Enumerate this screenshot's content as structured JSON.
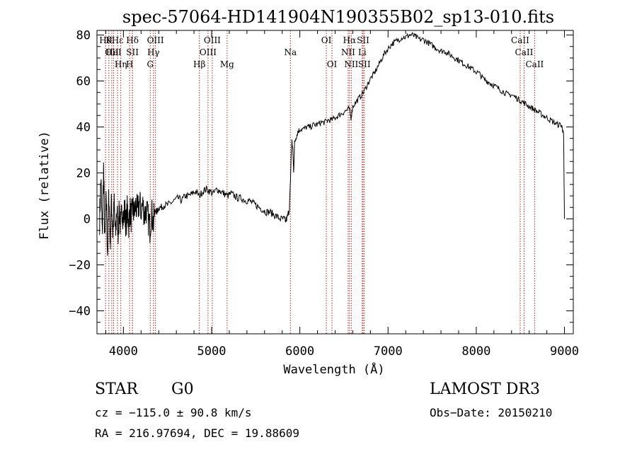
{
  "chart_data": {
    "type": "line",
    "title": "spec-57064-HD141904N190355B02_sp13-010.fits",
    "xlabel": "Wavelength (Å)",
    "ylabel": "Flux (relative)",
    "xlim": [
      3700,
      9100
    ],
    "ylim": [
      -50,
      82
    ],
    "xticks": [
      {
        "v": 4000,
        "label": "4000"
      },
      {
        "v": 5000,
        "label": "5000"
      },
      {
        "v": 6000,
        "label": "6000"
      },
      {
        "v": 7000,
        "label": "7000"
      },
      {
        "v": 8000,
        "label": "8000"
      },
      {
        "v": 9000,
        "label": "9000"
      }
    ],
    "yticks": [
      {
        "v": -40,
        "label": "−40"
      },
      {
        "v": -20,
        "label": "−20"
      },
      {
        "v": 0,
        "label": "0"
      },
      {
        "v": 20,
        "label": "20"
      },
      {
        "v": 40,
        "label": "40"
      },
      {
        "v": 60,
        "label": "60"
      },
      {
        "v": 80,
        "label": "80"
      }
    ],
    "series": [
      {
        "name": "flux",
        "color": "#000000",
        "points": [
          [
            3730,
            0
          ],
          [
            3745,
            18
          ],
          [
            3760,
            -8
          ],
          [
            3775,
            22
          ],
          [
            3790,
            -12
          ],
          [
            3805,
            10
          ],
          [
            3820,
            -15
          ],
          [
            3835,
            12
          ],
          [
            3850,
            -10
          ],
          [
            3865,
            8
          ],
          [
            3880,
            -6
          ],
          [
            3895,
            6
          ],
          [
            3910,
            -8
          ],
          [
            3925,
            5
          ],
          [
            3940,
            -5
          ],
          [
            3955,
            4
          ],
          [
            3970,
            -4
          ],
          [
            3985,
            5
          ],
          [
            4000,
            0
          ],
          [
            4015,
            4
          ],
          [
            4030,
            -3
          ],
          [
            4045,
            5
          ],
          [
            4060,
            -2
          ],
          [
            4075,
            4
          ],
          [
            4090,
            0
          ],
          [
            4105,
            5
          ],
          [
            4120,
            2
          ],
          [
            4140,
            6
          ],
          [
            4160,
            3
          ],
          [
            4180,
            7
          ],
          [
            4200,
            4
          ],
          [
            4220,
            6
          ],
          [
            4240,
            2
          ],
          [
            4260,
            4
          ],
          [
            4280,
            0
          ],
          [
            4300,
            -4
          ],
          [
            4320,
            3
          ],
          [
            4340,
            -2
          ],
          [
            4360,
            4
          ],
          [
            4380,
            3
          ],
          [
            4400,
            5
          ],
          [
            4430,
            5
          ],
          [
            4460,
            6
          ],
          [
            4500,
            6
          ],
          [
            4540,
            7
          ],
          [
            4580,
            8
          ],
          [
            4620,
            9
          ],
          [
            4660,
            8
          ],
          [
            4700,
            10
          ],
          [
            4740,
            10
          ],
          [
            4780,
            11
          ],
          [
            4820,
            12
          ],
          [
            4860,
            10
          ],
          [
            4900,
            12
          ],
          [
            4940,
            13
          ],
          [
            4980,
            12
          ],
          [
            5020,
            11
          ],
          [
            5060,
            13
          ],
          [
            5100,
            12
          ],
          [
            5140,
            11
          ],
          [
            5180,
            10
          ],
          [
            5220,
            11
          ],
          [
            5260,
            10
          ],
          [
            5300,
            9
          ],
          [
            5340,
            9
          ],
          [
            5380,
            8
          ],
          [
            5420,
            8
          ],
          [
            5460,
            7
          ],
          [
            5500,
            6
          ],
          [
            5540,
            5
          ],
          [
            5580,
            4
          ],
          [
            5620,
            3
          ],
          [
            5660,
            3
          ],
          [
            5700,
            2
          ],
          [
            5740,
            1
          ],
          [
            5780,
            0
          ],
          [
            5820,
            0
          ],
          [
            5840,
            -1
          ],
          [
            5860,
            1
          ],
          [
            5880,
            4
          ],
          [
            5890,
            12
          ],
          [
            5900,
            26
          ],
          [
            5910,
            34
          ],
          [
            5920,
            30
          ],
          [
            5930,
            20
          ],
          [
            5940,
            33
          ],
          [
            5960,
            36
          ],
          [
            5980,
            38
          ],
          [
            6000,
            39
          ],
          [
            6040,
            39
          ],
          [
            6080,
            40
          ],
          [
            6120,
            40
          ],
          [
            6160,
            41
          ],
          [
            6200,
            41
          ],
          [
            6240,
            42
          ],
          [
            6280,
            42
          ],
          [
            6320,
            43
          ],
          [
            6360,
            43
          ],
          [
            6400,
            44
          ],
          [
            6440,
            45
          ],
          [
            6480,
            46
          ],
          [
            6520,
            47
          ],
          [
            6560,
            48
          ],
          [
            6580,
            44
          ],
          [
            6600,
            49
          ],
          [
            6640,
            51
          ],
          [
            6680,
            53
          ],
          [
            6720,
            55
          ],
          [
            6760,
            58
          ],
          [
            6800,
            61
          ],
          [
            6840,
            63
          ],
          [
            6880,
            66
          ],
          [
            6920,
            69
          ],
          [
            6960,
            72
          ],
          [
            7000,
            74
          ],
          [
            7040,
            76
          ],
          [
            7080,
            77
          ],
          [
            7120,
            78
          ],
          [
            7160,
            79
          ],
          [
            7200,
            79
          ],
          [
            7240,
            80
          ],
          [
            7280,
            80
          ],
          [
            7320,
            79
          ],
          [
            7360,
            78
          ],
          [
            7400,
            78
          ],
          [
            7440,
            77
          ],
          [
            7480,
            76
          ],
          [
            7520,
            75
          ],
          [
            7560,
            74
          ],
          [
            7600,
            73
          ],
          [
            7640,
            73
          ],
          [
            7680,
            72
          ],
          [
            7720,
            71
          ],
          [
            7760,
            70
          ],
          [
            7800,
            69
          ],
          [
            7840,
            68
          ],
          [
            7880,
            67
          ],
          [
            7920,
            66
          ],
          [
            7960,
            65
          ],
          [
            8000,
            64
          ],
          [
            8040,
            63
          ],
          [
            8080,
            61
          ],
          [
            8120,
            60
          ],
          [
            8160,
            59
          ],
          [
            8200,
            58
          ],
          [
            8240,
            57
          ],
          [
            8280,
            56
          ],
          [
            8320,
            55
          ],
          [
            8360,
            54
          ],
          [
            8400,
            54
          ],
          [
            8440,
            53
          ],
          [
            8480,
            52
          ],
          [
            8520,
            51
          ],
          [
            8560,
            50
          ],
          [
            8600,
            49
          ],
          [
            8640,
            48
          ],
          [
            8680,
            47
          ],
          [
            8720,
            46
          ],
          [
            8760,
            45
          ],
          [
            8800,
            44
          ],
          [
            8840,
            43
          ],
          [
            8880,
            42
          ],
          [
            8920,
            41
          ],
          [
            8960,
            41
          ],
          [
            8980,
            39
          ],
          [
            8990,
            36
          ],
          [
            9000,
            0
          ]
        ]
      }
    ],
    "lines": [
      {
        "x": 3797,
        "label": "Hθ",
        "row": 0
      },
      {
        "x": 3835,
        "label": "K",
        "row": 0
      },
      {
        "x": 3868,
        "label": "OII",
        "row": 1
      },
      {
        "x": 3889,
        "label": "HeI",
        "row": 1
      },
      {
        "x": 3933,
        "label": "Hε",
        "row": 0
      },
      {
        "x": 3970,
        "label": "Hη",
        "row": 2
      },
      {
        "x": 4070,
        "label": "H",
        "row": 2
      },
      {
        "x": 4102,
        "label": "Hδ",
        "row": 0
      },
      {
        "x": 4102,
        "label": "SII",
        "row": 1
      },
      {
        "x": 4304,
        "label": "G",
        "row": 2
      },
      {
        "x": 4340,
        "label": "Hγ",
        "row": 1
      },
      {
        "x": 4363,
        "label": "OIII",
        "row": 0
      },
      {
        "x": 4861,
        "label": "Hβ",
        "row": 2
      },
      {
        "x": 4959,
        "label": "OIII",
        "row": 1
      },
      {
        "x": 5007,
        "label": "OIII",
        "row": 0
      },
      {
        "x": 5175,
        "label": "Mg",
        "row": 2
      },
      {
        "x": 5893,
        "label": "Na",
        "row": 1
      },
      {
        "x": 6300,
        "label": "OI",
        "row": 0
      },
      {
        "x": 6364,
        "label": "OI",
        "row": 2
      },
      {
        "x": 6548,
        "label": "NII",
        "row": 1
      },
      {
        "x": 6563,
        "label": "Hα",
        "row": 0
      },
      {
        "x": 6583,
        "label": "NII",
        "row": 2
      },
      {
        "x": 6707,
        "label": "Li",
        "row": 1
      },
      {
        "x": 6717,
        "label": "SII",
        "row": 0
      },
      {
        "x": 6731,
        "label": "SII",
        "row": 2
      },
      {
        "x": 8498,
        "label": "CaII",
        "row": 0
      },
      {
        "x": 8542,
        "label": "CaII",
        "row": 1
      },
      {
        "x": 8662,
        "label": "CaII",
        "row": 2
      }
    ]
  },
  "info": {
    "class": "STAR",
    "subclass": "G0",
    "survey": "LAMOST DR3",
    "cz": "cz = −115.0 ± 90.8 km/s",
    "obsdate": "Obs−Date: 20150210",
    "radec": "RA = 216.97694, DEC =  19.88609"
  }
}
